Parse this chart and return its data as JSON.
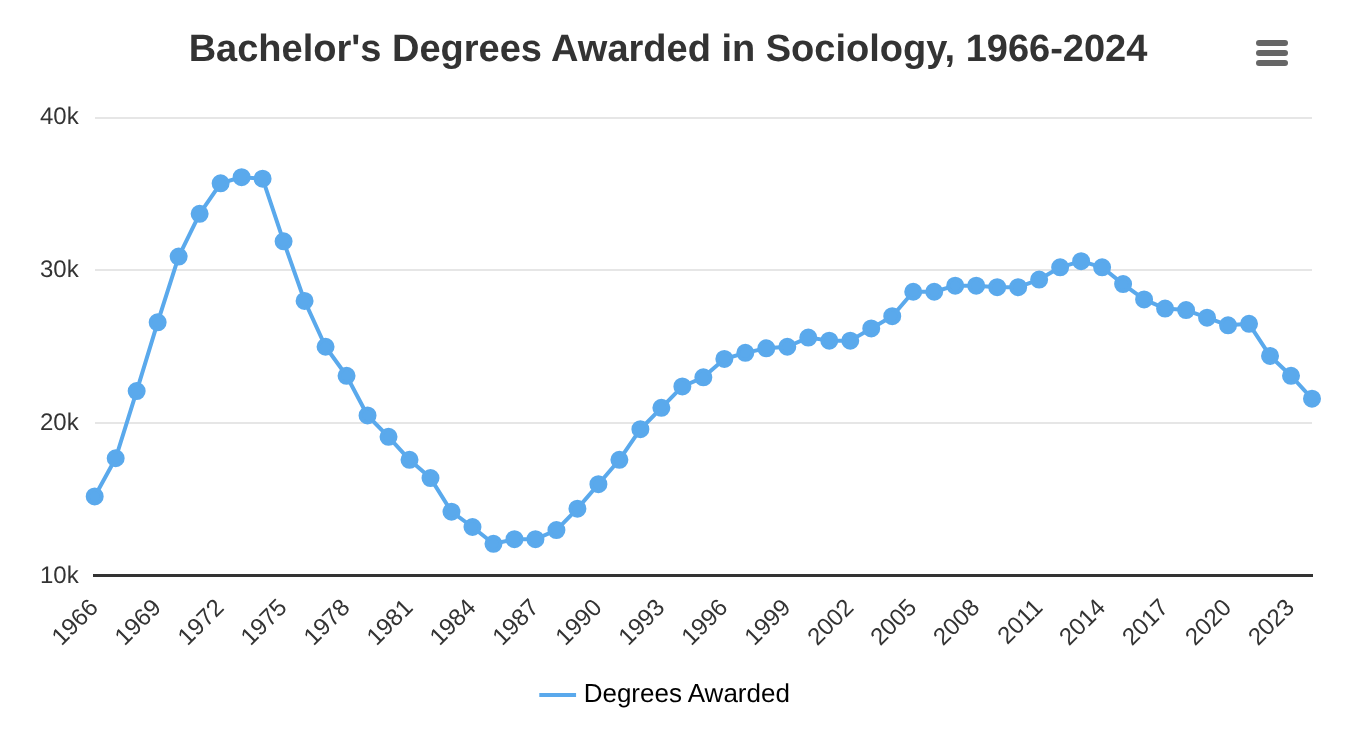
{
  "chart_data": {
    "type": "line",
    "title": "Bachelor's Degrees Awarded in Sociology, 1966-2024",
    "categories": [
      "1966",
      null,
      null,
      "1969",
      null,
      null,
      "1972",
      null,
      null,
      "1975",
      null,
      null,
      "1978",
      null,
      null,
      "1981",
      null,
      null,
      "1984",
      null,
      null,
      "1987",
      null,
      null,
      "1990",
      null,
      null,
      "1993",
      null,
      null,
      "1996",
      null,
      null,
      "1999",
      null,
      null,
      "2002",
      null,
      null,
      "2005",
      null,
      null,
      "2008",
      null,
      null,
      "2011",
      null,
      null,
      "2014",
      null,
      null,
      "2017",
      null,
      null,
      "2020",
      null,
      null,
      "2023",
      null
    ],
    "series": [
      {
        "name": "Degrees Awarded",
        "color": "#5aa9ec",
        "values": [
          15200,
          17700,
          22100,
          26600,
          30900,
          33700,
          35700,
          36100,
          36000,
          31900,
          28000,
          25000,
          23100,
          20500,
          19100,
          17600,
          16400,
          14200,
          13200,
          12100,
          12400,
          12400,
          13000,
          14400,
          16000,
          17600,
          19600,
          21000,
          22400,
          23000,
          24200,
          24600,
          24900,
          25000,
          25600,
          25400,
          25400,
          26200,
          27000,
          28600,
          28600,
          29000,
          29000,
          28900,
          28900,
          29400,
          30200,
          30600,
          30200,
          29100,
          28100,
          27500,
          27400,
          26900,
          26400,
          26500,
          24400,
          23100,
          21600
        ]
      }
    ],
    "ylim": [
      10000,
      40000
    ],
    "yticks": [
      {
        "value": 10000,
        "label": "10k"
      },
      {
        "value": 20000,
        "label": "20k"
      },
      {
        "value": 30000,
        "label": "30k"
      },
      {
        "value": 40000,
        "label": "40k"
      }
    ],
    "grid": "y",
    "legend": "bottom",
    "marker": "circle",
    "line_style": "solid"
  }
}
